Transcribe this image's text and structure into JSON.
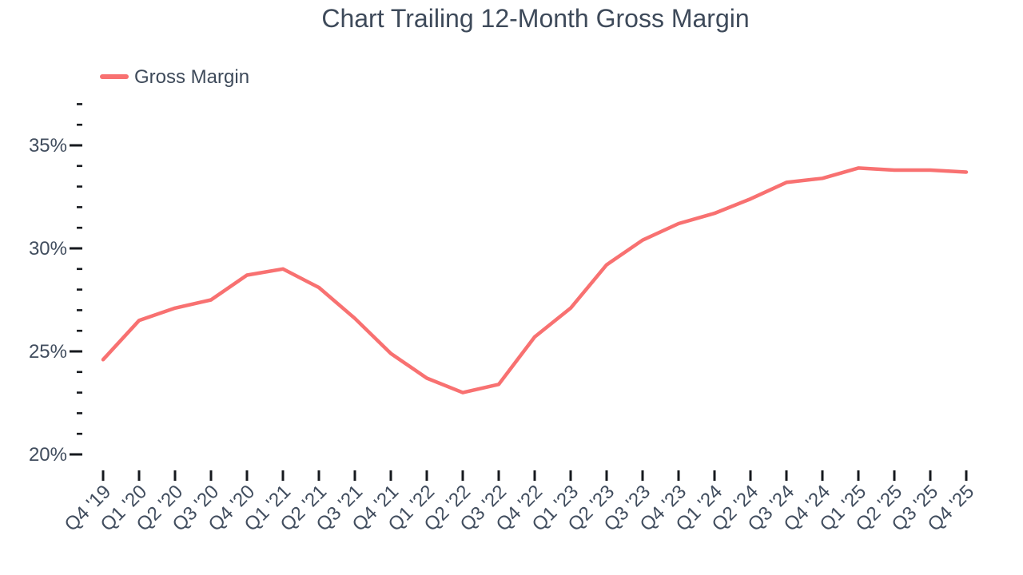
{
  "title": "Chart Trailing 12-Month Gross Margin",
  "legend": {
    "label": "Gross Margin"
  },
  "colors": {
    "line": "#f87171",
    "text": "#3e4a5a",
    "tick": "#16191e",
    "background": "#ffffff"
  },
  "chart_data": {
    "type": "line",
    "title": "Chart Trailing 12-Month Gross Margin",
    "categories": [
      "Q4 '19",
      "Q1 '20",
      "Q2 '20",
      "Q3 '20",
      "Q4 '20",
      "Q1 '21",
      "Q2 '21",
      "Q3 '21",
      "Q4 '21",
      "Q1 '22",
      "Q2 '22",
      "Q3 '22",
      "Q4 '22",
      "Q1 '23",
      "Q2 '23",
      "Q3 '23",
      "Q4 '23",
      "Q1 '24",
      "Q2 '24",
      "Q3 '24",
      "Q4 '24",
      "Q1 '25",
      "Q2 '25",
      "Q3 '25",
      "Q4 '25"
    ],
    "series": [
      {
        "name": "Gross Margin",
        "values": [
          24.6,
          26.5,
          27.1,
          27.5,
          28.7,
          29.0,
          28.1,
          26.6,
          24.9,
          23.7,
          23.0,
          23.4,
          25.7,
          27.1,
          29.2,
          30.4,
          31.2,
          31.7,
          32.4,
          33.2,
          33.4,
          33.9,
          33.8,
          33.8,
          33.7
        ]
      }
    ],
    "xlabel": "",
    "ylabel": "",
    "ylim": [
      20,
      37
    ],
    "y_major_ticks": [
      {
        "value": 35,
        "label": "35%"
      },
      {
        "value": 30,
        "label": "30%"
      },
      {
        "value": 25,
        "label": "25%"
      },
      {
        "value": 20,
        "label": "20%"
      }
    ],
    "y_minor_tick_values": [
      37,
      36,
      34,
      33,
      32,
      31,
      29,
      28,
      27,
      26,
      24,
      23,
      22,
      21
    ],
    "grid": false,
    "legend_position": "top-left"
  }
}
